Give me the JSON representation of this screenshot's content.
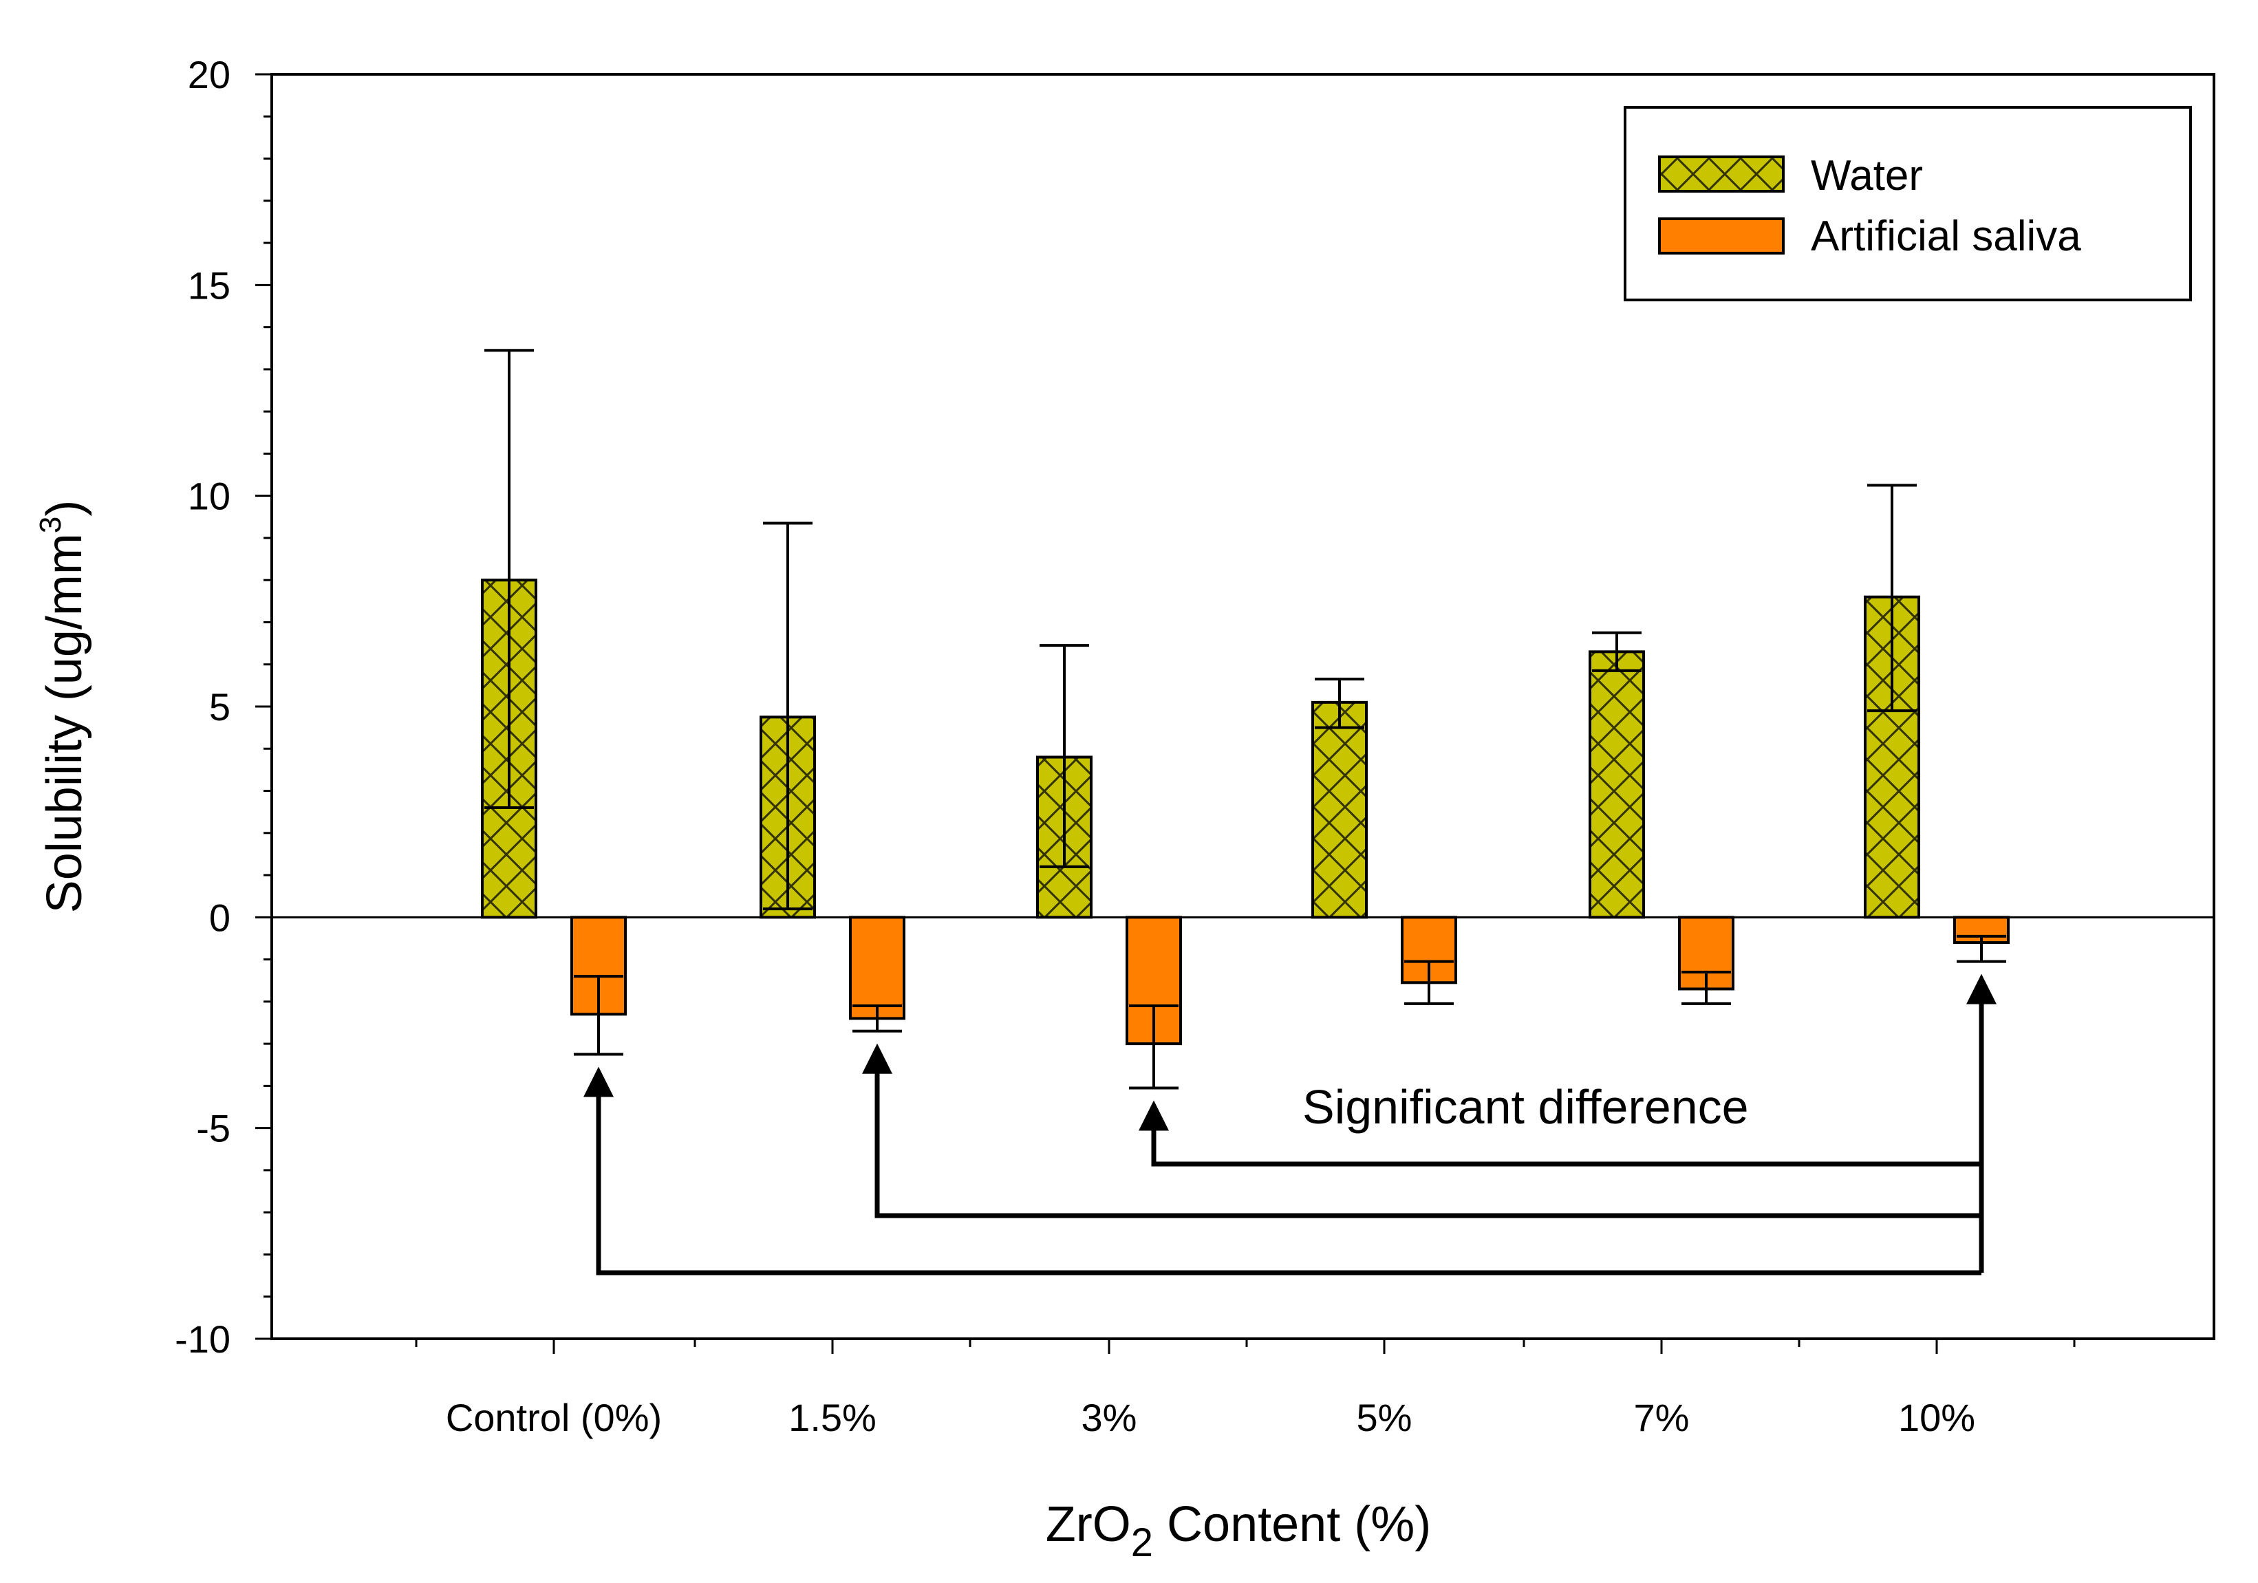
{
  "chart_data": {
    "type": "bar",
    "categories": [
      "Control (0%)",
      "1.5%",
      "3%",
      "5%",
      "7%",
      "10%"
    ],
    "series": [
      {
        "name": "Water",
        "color": "#c8c400",
        "pattern": "crosshatch",
        "values": [
          8.0,
          4.75,
          3.8,
          5.1,
          6.3,
          7.6
        ],
        "error_low": [
          2.6,
          0.2,
          1.2,
          4.5,
          5.85,
          4.9
        ],
        "error_high": [
          13.45,
          9.35,
          6.45,
          5.65,
          6.75,
          10.25
        ]
      },
      {
        "name": "Artificial saliva",
        "color": "#ff7f00",
        "pattern": "solid",
        "values": [
          -2.3,
          -2.4,
          -3.0,
          -1.55,
          -1.7,
          -0.6
        ],
        "error_low": [
          -1.4,
          -2.1,
          -2.1,
          -1.05,
          -1.3,
          -0.45
        ],
        "error_high": [
          -3.25,
          -2.7,
          -4.05,
          -2.05,
          -2.05,
          -1.05
        ]
      }
    ],
    "ylim": [
      -10,
      20
    ],
    "yticks": [
      -10,
      -5,
      0,
      5,
      10,
      15,
      20
    ],
    "ylabel_main": "Solubility (ug/mm",
    "ylabel_sup": "3",
    "ylabel_close": ")",
    "xlabel_main": "ZrO",
    "xlabel_sub": "2",
    "xlabel_rest": " Content (%)",
    "legend_position": "top-right",
    "annotation": {
      "text": "Significant difference",
      "links": [
        {
          "from": 2,
          "to": 5
        },
        {
          "from": 1,
          "to": 5
        },
        {
          "from": 0,
          "to": 5
        }
      ]
    }
  }
}
